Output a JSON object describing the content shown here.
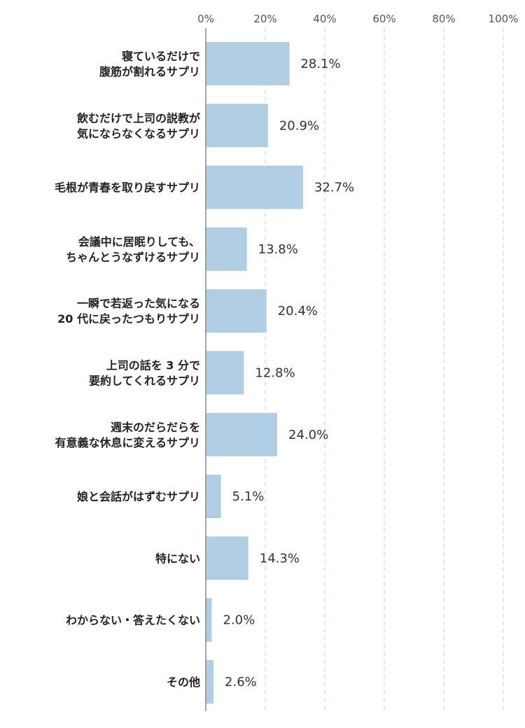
{
  "chart_data": {
    "type": "bar",
    "orientation": "horizontal",
    "categories": [
      [
        "寝ているだけで",
        "腹筋が割れるサプリ"
      ],
      [
        "飲むだけで上司の説教が",
        "気にならなくなるサプリ"
      ],
      [
        "毛根が青春を取り戻すサプリ"
      ],
      [
        "会議中に居眠りしても、",
        "ちゃんとうなずけるサプリ"
      ],
      [
        "一瞬で若返った気になる",
        "20 代に戻ったつもりサプリ"
      ],
      [
        "上司の話を 3 分で",
        "要約してくれるサプリ"
      ],
      [
        "週末のだらだらを",
        "有意義な休息に変えるサプリ"
      ],
      [
        "娘と会話がはずむサプリ"
      ],
      [
        "特にない"
      ],
      [
        "わからない・答えたくない"
      ],
      [
        "その他"
      ]
    ],
    "values": [
      28.1,
      20.9,
      32.7,
      13.8,
      20.4,
      12.8,
      24.0,
      5.1,
      14.3,
      2.0,
      2.6
    ],
    "value_labels": [
      "28.1%",
      "20.9%",
      "32.7%",
      "13.8%",
      "20.4%",
      "12.8%",
      "24.0%",
      "5.1%",
      "14.3%",
      "2.0%",
      "2.6%"
    ],
    "x_ticks": [
      "0%",
      "20%",
      "40%",
      "60%",
      "80%",
      "100%"
    ],
    "xlim": [
      0,
      100
    ],
    "axis_position": "top",
    "grid": "vertical dashed",
    "bar_color": "#b0cde3",
    "grid_color": "#cccccc",
    "axis_color": "#888888"
  }
}
